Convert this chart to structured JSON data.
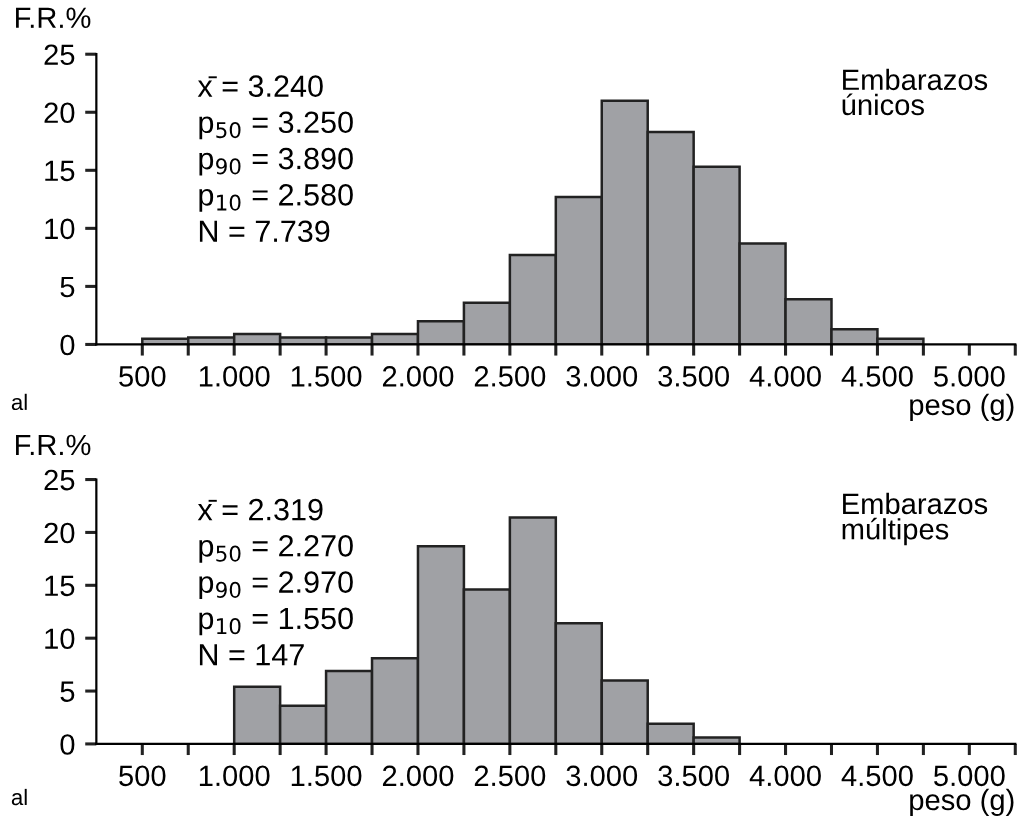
{
  "chart_data": [
    {
      "type": "histogram",
      "title": "Embarazos\núnicos",
      "ylabel": "F.R.%",
      "xlabel": "peso (g)",
      "annotations": [
        "x̄ = 3.240",
        "p$_{50}$ = 3.250",
        "p$_{90}$ = 3.890",
        "p$_{10}$ = 2.580",
        "N = 7.739",
        "al"
      ],
      "bins": [
        500,
        750,
        1000,
        1250,
        1500,
        1750,
        2000,
        2250,
        2500,
        2750,
        3000,
        3250,
        3500,
        3750,
        4000,
        4250,
        4500,
        4750
      ],
      "values": [
        0.5,
        0.6,
        0.9,
        0.6,
        0.6,
        0.9,
        2.0,
        3.6,
        7.7,
        12.7,
        21.0,
        18.3,
        15.3,
        8.7,
        3.9,
        1.3,
        0.5
      ],
      "color": "#a0a1a5",
      "xlim": [
        250,
        5250
      ],
      "ylim": [
        0,
        25
      ],
      "yticks": [
        0,
        5,
        10,
        15,
        20,
        25
      ],
      "xticks": [
        {
          "value": 500,
          "label": "500"
        },
        {
          "value": 750,
          "label": null
        },
        {
          "value": 1000,
          "label": "1.000"
        },
        {
          "value": 1250,
          "label": null
        },
        {
          "value": 1500,
          "label": "1.500"
        },
        {
          "value": 1750,
          "label": null
        },
        {
          "value": 2000,
          "label": "2.000"
        },
        {
          "value": 2250,
          "label": null
        },
        {
          "value": 2500,
          "label": "2.500"
        },
        {
          "value": 2750,
          "label": null
        },
        {
          "value": 3000,
          "label": "3.000"
        },
        {
          "value": 3250,
          "label": null
        },
        {
          "value": 3500,
          "label": "3.500"
        },
        {
          "value": 3750,
          "label": null
        },
        {
          "value": 4000,
          "label": "4.000"
        },
        {
          "value": 4250,
          "label": null
        },
        {
          "value": 4500,
          "label": "4.500"
        },
        {
          "value": 4750,
          "label": null
        },
        {
          "value": 5000,
          "label": "5.000"
        },
        {
          "value": 5250,
          "label": null
        }
      ],
      "grid": false,
      "legend": false
    },
    {
      "type": "histogram",
      "title": "Embarazos\nmúltipes",
      "ylabel": "F.R.%",
      "xlabel": "peso (g)",
      "annotations": [
        "x̄ = 2.319",
        "p$_{50}$ = 2.270",
        "p$_{90}$ = 2.970",
        "p$_{10}$ = 1.550",
        "N = 147",
        "al"
      ],
      "bins": [
        1000,
        1250,
        1500,
        1750,
        2000,
        2250,
        2500,
        2750,
        3000,
        3250,
        3500,
        3750
      ],
      "values": [
        5.4,
        3.6,
        6.9,
        8.1,
        18.7,
        14.6,
        21.4,
        11.4,
        6.0,
        1.9,
        0.6
      ],
      "color": "#a0a1a5",
      "xlim": [
        250,
        5250
      ],
      "ylim": [
        0,
        25
      ],
      "yticks": [
        0,
        5,
        10,
        15,
        20,
        25
      ],
      "xticks": [
        {
          "value": 500,
          "label": "500"
        },
        {
          "value": 750,
          "label": null
        },
        {
          "value": 1000,
          "label": "1.000"
        },
        {
          "value": 1250,
          "label": null
        },
        {
          "value": 1500,
          "label": "1.500"
        },
        {
          "value": 1750,
          "label": null
        },
        {
          "value": 2000,
          "label": "2.000"
        },
        {
          "value": 2250,
          "label": null
        },
        {
          "value": 2500,
          "label": "2.500"
        },
        {
          "value": 2750,
          "label": null
        },
        {
          "value": 3000,
          "label": "3.000"
        },
        {
          "value": 3250,
          "label": null
        },
        {
          "value": 3500,
          "label": "3.500"
        },
        {
          "value": 3750,
          "label": null
        },
        {
          "value": 4000,
          "label": "4.000"
        },
        {
          "value": 4250,
          "label": null
        },
        {
          "value": 4500,
          "label": "4.500"
        },
        {
          "value": 4750,
          "label": null
        },
        {
          "value": 5000,
          "label": "5.000"
        },
        {
          "value": 5250,
          "label": null
        }
      ],
      "grid": false,
      "legend": false
    }
  ]
}
